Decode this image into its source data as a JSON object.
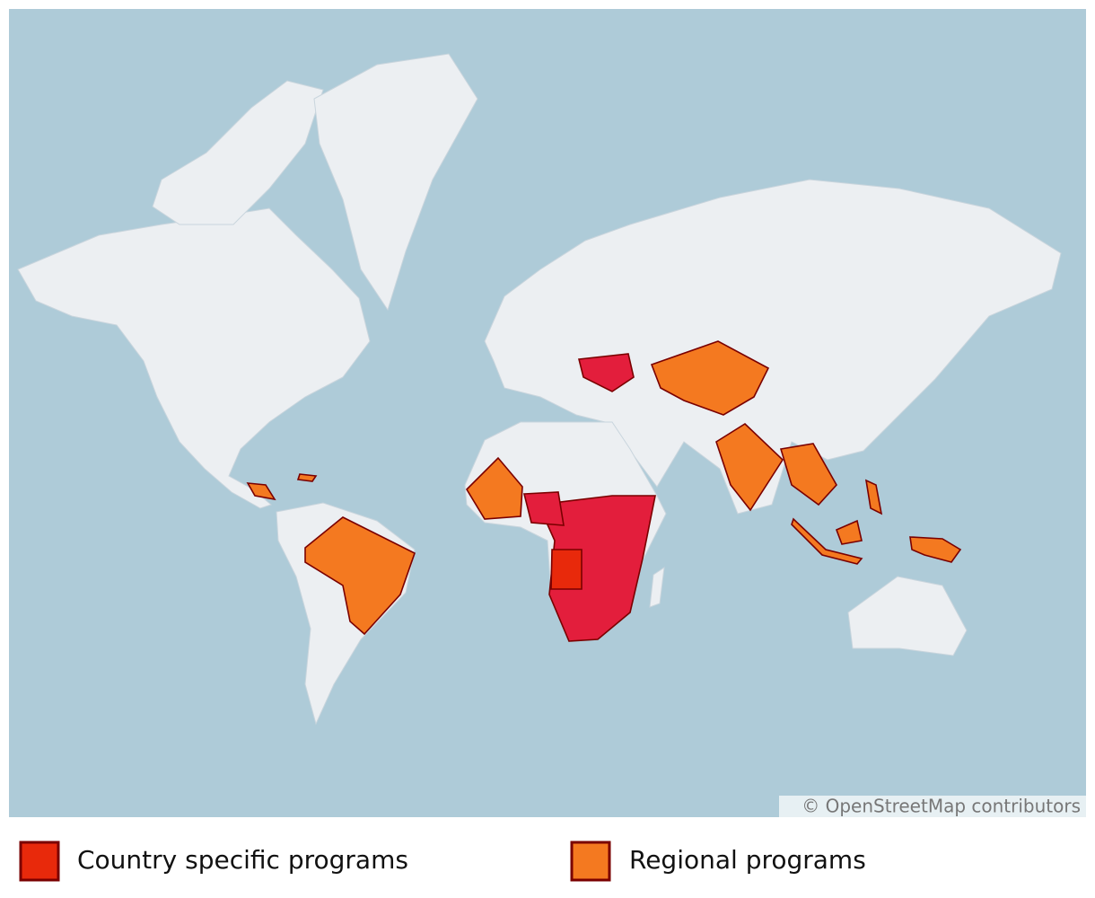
{
  "map": {
    "attribution": "© OpenStreetMap contributors",
    "legend": [
      {
        "label": "Country specific programs",
        "color": "#e8290b"
      },
      {
        "label": "Regional programs",
        "color": "#f47920"
      }
    ]
  }
}
